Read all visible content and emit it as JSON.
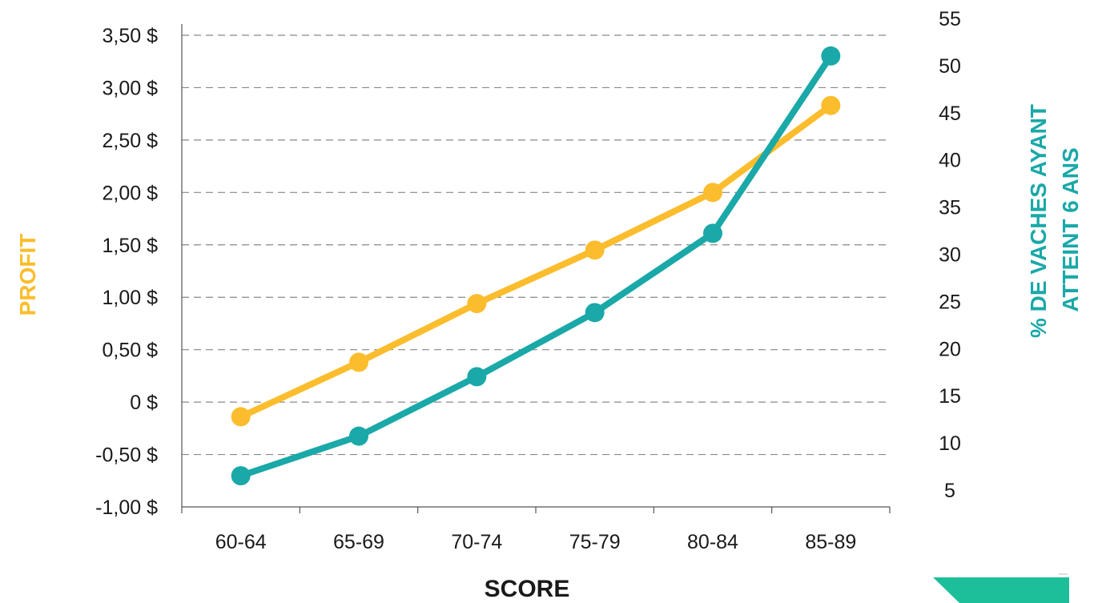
{
  "chart_data": {
    "type": "line",
    "categories": [
      "60-64",
      "65-69",
      "70-74",
      "75-79",
      "80-84",
      "85-89"
    ],
    "xlabel": "SCORE",
    "left_axis": {
      "label": "PROFIT",
      "range": [
        -1.0,
        3.5
      ],
      "ticks": [
        3.5,
        3.0,
        2.5,
        2.0,
        1.5,
        1.0,
        0.5,
        0.0,
        -0.5,
        -1.0
      ],
      "tick_labels": [
        "3,50 $",
        "3,00 $",
        "2,50 $",
        "2,00 $",
        "1,50 $",
        "1,00 $",
        "0,50 $",
        "0 $",
        "-0,50 $",
        "-1,00 $"
      ]
    },
    "right_axis": {
      "label_line1": "% DE VACHES AYANT",
      "label_line2": "ATTEINT 6 ANS",
      "range": [
        5,
        55
      ],
      "ticks": [
        55,
        50,
        45,
        40,
        35,
        30,
        25,
        20,
        15,
        10,
        5
      ],
      "tick_labels": [
        "55",
        "50",
        "45",
        "40",
        "35",
        "30",
        "25",
        "20",
        "15",
        "10",
        "5"
      ]
    },
    "series": [
      {
        "axis": "left",
        "color": "#fbbd2d",
        "values": [
          -0.14,
          0.38,
          0.94,
          1.45,
          2.0,
          2.83
        ]
      },
      {
        "axis": "right",
        "color": "#1aa8a8",
        "values": [
          8.3,
          12.5,
          18.8,
          25.6,
          34.0,
          52.8
        ]
      }
    ],
    "grid": true,
    "grid_style": "dashed"
  },
  "colors": {
    "profit": "#fbbd2d",
    "cows": "#1aa8a8",
    "decoration": "#1dbf9b"
  }
}
